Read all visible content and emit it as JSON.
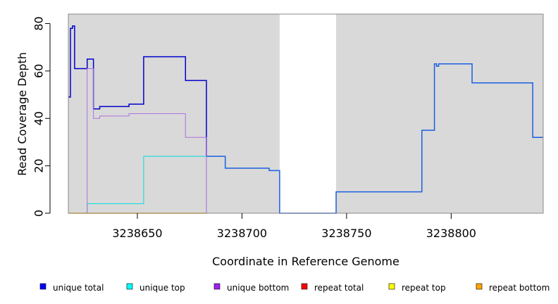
{
  "chart_data": {
    "type": "line",
    "step": true,
    "title": "",
    "xlabel": "Coordinate in Reference Genome",
    "ylabel": "Read Coverage Depth",
    "xlim": [
      3238617,
      3238844
    ],
    "ylim": [
      0,
      84
    ],
    "xticks": [
      3238650,
      3238700,
      3238750,
      3238800
    ],
    "yticks": [
      0,
      20,
      40,
      60,
      80
    ],
    "shaded_regions": [
      {
        "x0": 3238617,
        "x1": 3238718,
        "color": "#d9d9d9"
      },
      {
        "x0": 3238745,
        "x1": 3238844,
        "color": "#d9d9d9"
      }
    ],
    "legend_position": "bottom",
    "legend": [
      {
        "name": "unique total",
        "color": "#0000ff"
      },
      {
        "name": "unique top",
        "color": "#00ffff"
      },
      {
        "name": "unique bottom",
        "color": "#a020f0"
      },
      {
        "name": "repeat total",
        "color": "#ff0000"
      },
      {
        "name": "repeat top",
        "color": "#ffff00"
      },
      {
        "name": "repeat bottom",
        "color": "#ffa500"
      }
    ],
    "series": [
      {
        "color": "#0000cc",
        "width": 1.5,
        "points": [
          [
            3238617,
            49
          ],
          [
            3238618,
            78
          ],
          [
            3238619,
            79
          ],
          [
            3238620,
            61
          ],
          [
            3238626,
            65
          ],
          [
            3238629,
            44
          ],
          [
            3238632,
            45
          ],
          [
            3238646,
            46
          ],
          [
            3238653,
            66
          ],
          [
            3238673,
            56
          ],
          [
            3238683,
            24
          ]
        ]
      },
      {
        "color": "#1a5fe0",
        "width": 1.5,
        "points": [
          [
            3238683,
            24
          ],
          [
            3238692,
            19
          ],
          [
            3238713,
            18
          ],
          [
            3238718,
            0
          ],
          [
            3238745,
            9
          ],
          [
            3238786,
            35
          ],
          [
            3238792,
            63
          ],
          [
            3238793,
            62
          ],
          [
            3238794,
            63
          ],
          [
            3238810,
            55
          ],
          [
            3238839,
            32
          ],
          [
            3238844,
            32
          ]
        ]
      },
      {
        "color": "#00dddd",
        "width": 1,
        "points": [
          [
            3238617,
            0
          ],
          [
            3238626,
            4
          ],
          [
            3238653,
            24
          ],
          [
            3238683,
            0
          ]
        ]
      },
      {
        "color": "#b070e0",
        "width": 1,
        "points": [
          [
            3238617,
            0
          ],
          [
            3238626,
            61
          ],
          [
            3238629,
            40
          ],
          [
            3238632,
            41
          ],
          [
            3238646,
            42
          ],
          [
            3238673,
            32
          ],
          [
            3238683,
            0
          ]
        ]
      },
      {
        "color": "#ffa500",
        "width": 1.5,
        "points": [
          [
            3238617,
            0
          ],
          [
            3238683,
            0
          ]
        ]
      },
      {
        "color": "#e0205a",
        "width": 1,
        "points": [
          [
            3238683,
            0
          ],
          [
            3238844,
            0
          ]
        ]
      }
    ]
  }
}
